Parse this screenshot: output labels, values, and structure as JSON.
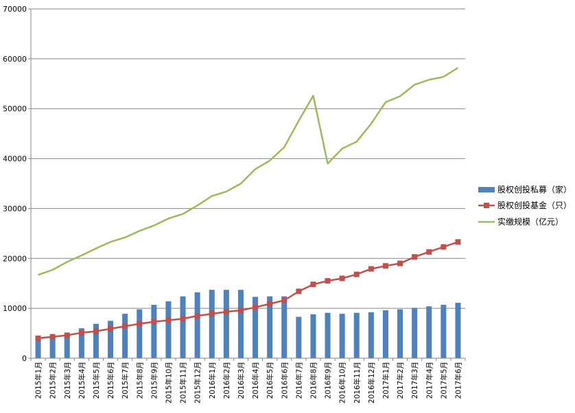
{
  "chart_data": {
    "type": "bar+line",
    "title": "",
    "xlabel": "",
    "ylabel": "",
    "ylim": [
      0,
      70000
    ],
    "yticks": [
      0,
      10000,
      20000,
      30000,
      40000,
      50000,
      60000,
      70000
    ],
    "grid": true,
    "legend_position": "right",
    "categories": [
      "2015年1月",
      "2015年2月",
      "2015年3月",
      "2015年4月",
      "2015年5月",
      "2015年6月",
      "2015年7月",
      "2015年8月",
      "2015年9月",
      "2015年10月",
      "2015年11月",
      "2015年12月",
      "2016年1月",
      "2016年2月",
      "2016年3月",
      "2016年4月",
      "2016年5月",
      "2016年6月",
      "2016年7月",
      "2016年8月",
      "2016年9月",
      "2016年10月",
      "2016年11月",
      "2016年12月",
      "2017年1月",
      "2017年2月",
      "2017年3月",
      "2017年4月",
      "2017年5月",
      "2017年6月"
    ],
    "series": [
      {
        "name": "股权创投私募（家）",
        "type": "bar",
        "color": "#4f81bd",
        "values": [
          4200,
          4500,
          4800,
          6000,
          6900,
          7500,
          8900,
          9800,
          10700,
          11400,
          12400,
          13200,
          13700,
          13700,
          13700,
          12300,
          12400,
          12400,
          8300,
          8800,
          9100,
          8900,
          9100,
          9200,
          9600,
          9800,
          10100,
          10400,
          10700,
          11100
        ]
      },
      {
        "name": "股权创投基金（只）",
        "type": "line",
        "marker": "square",
        "color": "#c0504d",
        "values": [
          4000,
          4300,
          4600,
          5100,
          5400,
          5900,
          6400,
          6900,
          7300,
          7600,
          7900,
          8500,
          8900,
          9300,
          9600,
          10200,
          10900,
          11600,
          13400,
          14800,
          15500,
          16000,
          16800,
          17900,
          18500,
          19000,
          20300,
          21300,
          22300,
          23300
        ]
      },
      {
        "name": "实缴规模（亿元）",
        "type": "line",
        "color": "#9bbb59",
        "values": [
          16700,
          17700,
          19300,
          20600,
          22000,
          23300,
          24200,
          25500,
          26600,
          28000,
          28900,
          30600,
          32500,
          33400,
          35000,
          37900,
          39600,
          42300,
          47600,
          52600,
          39000,
          42000,
          43400,
          47000,
          51300,
          52500,
          54800,
          55800,
          56400,
          58200
        ]
      }
    ]
  }
}
